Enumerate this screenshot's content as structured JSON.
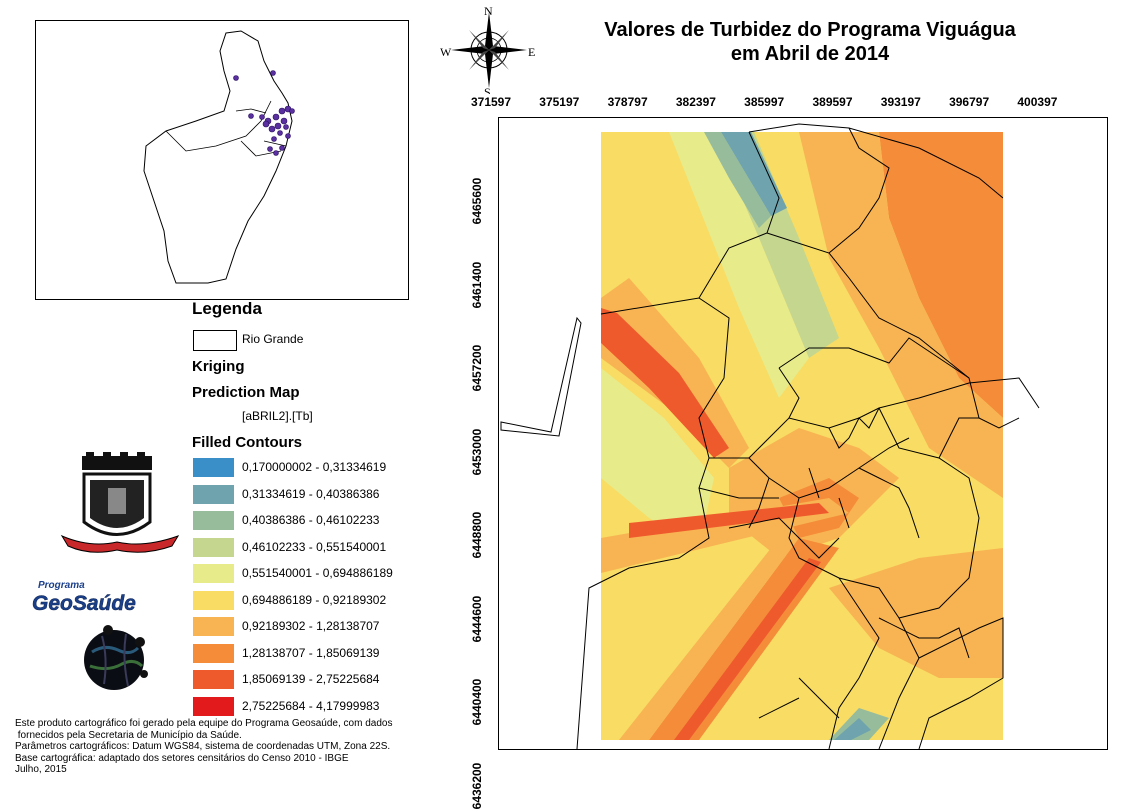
{
  "title": {
    "line1": "Valores de Turbidez  do Programa Viguágua",
    "line2": "em Abril de 2014"
  },
  "compass": {
    "n": "N",
    "s": "S",
    "e": "E",
    "w": "W"
  },
  "legend": {
    "heading": "Legenda",
    "boundary_label": "Rio Grande",
    "method": "Kriging",
    "map_type": "Prediction Map",
    "field": "[aBRIL2].[Tb]",
    "contours_heading": "Filled Contours",
    "classes": [
      {
        "label": "0,170000002 - 0,31334619",
        "color": "#3a8fc8"
      },
      {
        "label": "0,31334619 - 0,40386386",
        "color": "#6fa3ad"
      },
      {
        "label": "0,40386386 - 0,46102233",
        "color": "#96bc9c"
      },
      {
        "label": "0,46102233 - 0,551540001",
        "color": "#c5d68f"
      },
      {
        "label": "0,551540001 - 0,694886189",
        "color": "#e8eb8a"
      },
      {
        "label": "0,694886189 - 0,92189302",
        "color": "#f8dc63"
      },
      {
        "label": "0,92189302 - 1,28138707",
        "color": "#f8b452"
      },
      {
        "label": "1,28138707 - 1,85069139",
        "color": "#f48c3a"
      },
      {
        "label": "1,85069139 - 2,75225684",
        "color": "#ef5a2c"
      },
      {
        "label": "2,75225684 - 4,17999983",
        "color": "#e31a1c"
      }
    ]
  },
  "logo": {
    "text1": "Programa",
    "text2": "GeoSaúde"
  },
  "axes": {
    "x_ticks": [
      "371597",
      "375197",
      "378797",
      "382397",
      "385997",
      "389597",
      "393197",
      "396797",
      "400397"
    ],
    "y_ticks": [
      "6465600",
      "6461400",
      "6457200",
      "6453000",
      "6448800",
      "6444600",
      "6440400",
      "6436200"
    ]
  },
  "footer": {
    "line1": "Este produto cartográfico foi gerado pela equipe do Programa Geosaúde, com dados",
    "line2": " fornecidos pela Secretaria de Município da Saúde.",
    "line3": "Parâmetros cartográficos: Datum WGS84, sistema de coordenadas UTM, Zona 22S.",
    "line4": "Base cartográfica: adaptado dos setores censitários do Censo 2010 - IBGE",
    "line5": "Julho, 2015"
  }
}
